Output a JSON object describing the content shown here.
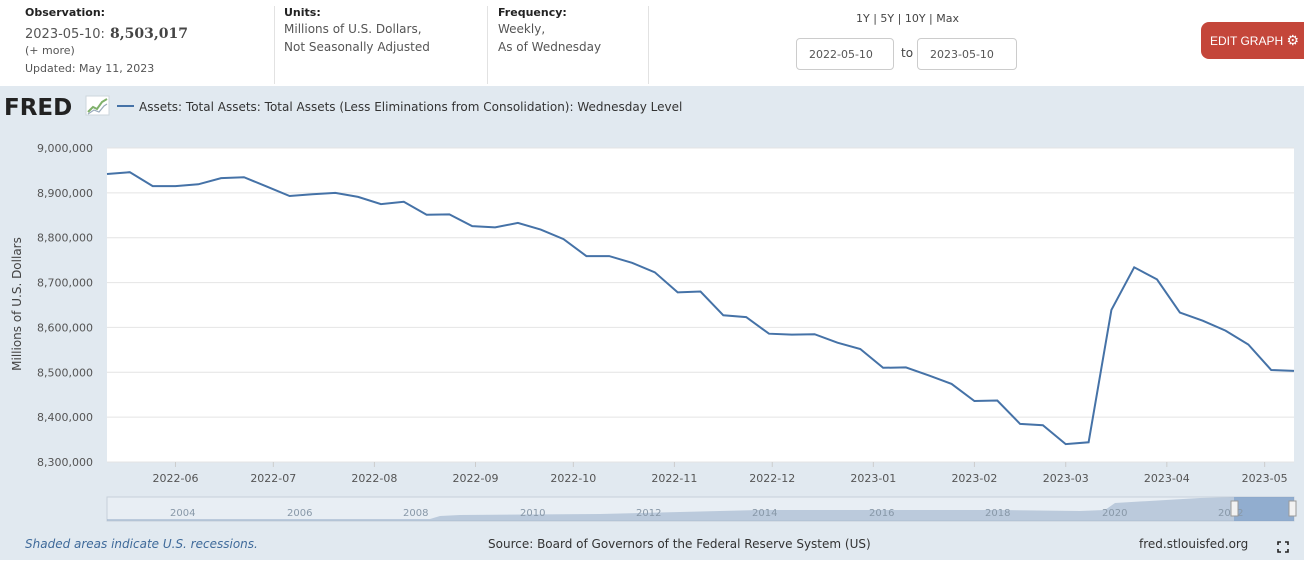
{
  "header": {
    "observation_label": "Observation:",
    "observation_date": "2023-05-10:",
    "observation_value": "8,503,017",
    "more": "(+ more)",
    "updated": "Updated: May 11, 2023",
    "units_label": "Units:",
    "units_line1": "Millions of U.S. Dollars,",
    "units_line2": "Not Seasonally Adjusted",
    "frequency_label": "Frequency:",
    "frequency_line1": "Weekly,",
    "frequency_line2": "As of Wednesday",
    "ranges": "1Y | 5Y | 10Y | Max",
    "start_date": "2022-05-10",
    "to": "to",
    "end_date": "2023-05-10",
    "edit_button": "EDIT GRAPH"
  },
  "logo": {
    "text": "FRED"
  },
  "footer": {
    "recession_note": "Shaded areas indicate U.S. recessions.",
    "source": "Source: Board of Governors of the Federal Reserve System (US)",
    "site": "fred.stlouisfed.org"
  },
  "colors": {
    "line": "#4572a7",
    "button": "#c4463a",
    "background": "#e1e9f0"
  },
  "chart_data": {
    "type": "line",
    "legend": "Assets: Total Assets: Total Assets (Less Eliminations from Consolidation): Wednesday Level",
    "ylabel": "Millions of U.S. Dollars",
    "xlabel": "",
    "ylim": [
      8300000,
      9000000
    ],
    "yticks": [
      "8,300,000",
      "8,400,000",
      "8,500,000",
      "8,600,000",
      "8,700,000",
      "8,800,000",
      "8,900,000",
      "9,000,000"
    ],
    "xlim": [
      "2022-05-11",
      "2023-05-10"
    ],
    "xticks": [
      {
        "date": "2022-06-01",
        "label": "2022-06"
      },
      {
        "date": "2022-07-01",
        "label": "2022-07"
      },
      {
        "date": "2022-08-01",
        "label": "2022-08"
      },
      {
        "date": "2022-09-01",
        "label": "2022-09"
      },
      {
        "date": "2022-10-01",
        "label": "2022-10"
      },
      {
        "date": "2022-11-01",
        "label": "2022-11"
      },
      {
        "date": "2022-12-01",
        "label": "2022-12"
      },
      {
        "date": "2023-01-01",
        "label": "2023-01"
      },
      {
        "date": "2023-02-01",
        "label": "2023-02"
      },
      {
        "date": "2023-03-01",
        "label": "2023-03"
      },
      {
        "date": "2023-04-01",
        "label": "2023-04"
      },
      {
        "date": "2023-05-01",
        "label": "2023-05"
      }
    ],
    "grid": true,
    "series": [
      {
        "name": "Assets: Total Assets: Total Assets (Less Eliminations from Consolidation): Wednesday Level",
        "x": [
          "2022-05-11",
          "2022-05-18",
          "2022-05-25",
          "2022-06-01",
          "2022-06-08",
          "2022-06-15",
          "2022-06-22",
          "2022-06-29",
          "2022-07-06",
          "2022-07-13",
          "2022-07-20",
          "2022-07-27",
          "2022-08-03",
          "2022-08-10",
          "2022-08-17",
          "2022-08-24",
          "2022-08-31",
          "2022-09-07",
          "2022-09-14",
          "2022-09-21",
          "2022-09-28",
          "2022-10-05",
          "2022-10-12",
          "2022-10-19",
          "2022-10-26",
          "2022-11-02",
          "2022-11-09",
          "2022-11-16",
          "2022-11-23",
          "2022-11-30",
          "2022-12-07",
          "2022-12-14",
          "2022-12-21",
          "2022-12-28",
          "2023-01-04",
          "2023-01-11",
          "2023-01-18",
          "2023-01-25",
          "2023-02-01",
          "2023-02-08",
          "2023-02-15",
          "2023-02-22",
          "2023-03-01",
          "2023-03-08",
          "2023-03-15",
          "2023-03-22",
          "2023-03-29",
          "2023-04-05",
          "2023-04-12",
          "2023-04-19",
          "2023-04-26",
          "2023-05-03",
          "2023-05-10"
        ],
        "y": [
          8942000,
          8946000,
          8915000,
          8915000,
          8919000,
          8933000,
          8935000,
          8914000,
          8893000,
          8897000,
          8900000,
          8891000,
          8875000,
          8880000,
          8851000,
          8852000,
          8826000,
          8823000,
          8833000,
          8818000,
          8797000,
          8759000,
          8759000,
          8744000,
          8723000,
          8678000,
          8680000,
          8627000,
          8623000,
          8586000,
          8584000,
          8585000,
          8566000,
          8552000,
          8510000,
          8511000,
          8493000,
          8474000,
          8436000,
          8437000,
          8385000,
          8382000,
          8340000,
          8344000,
          8639000,
          8734000,
          8707000,
          8633000,
          8615000,
          8593000,
          8562000,
          8505000,
          8503017
        ]
      }
    ]
  }
}
